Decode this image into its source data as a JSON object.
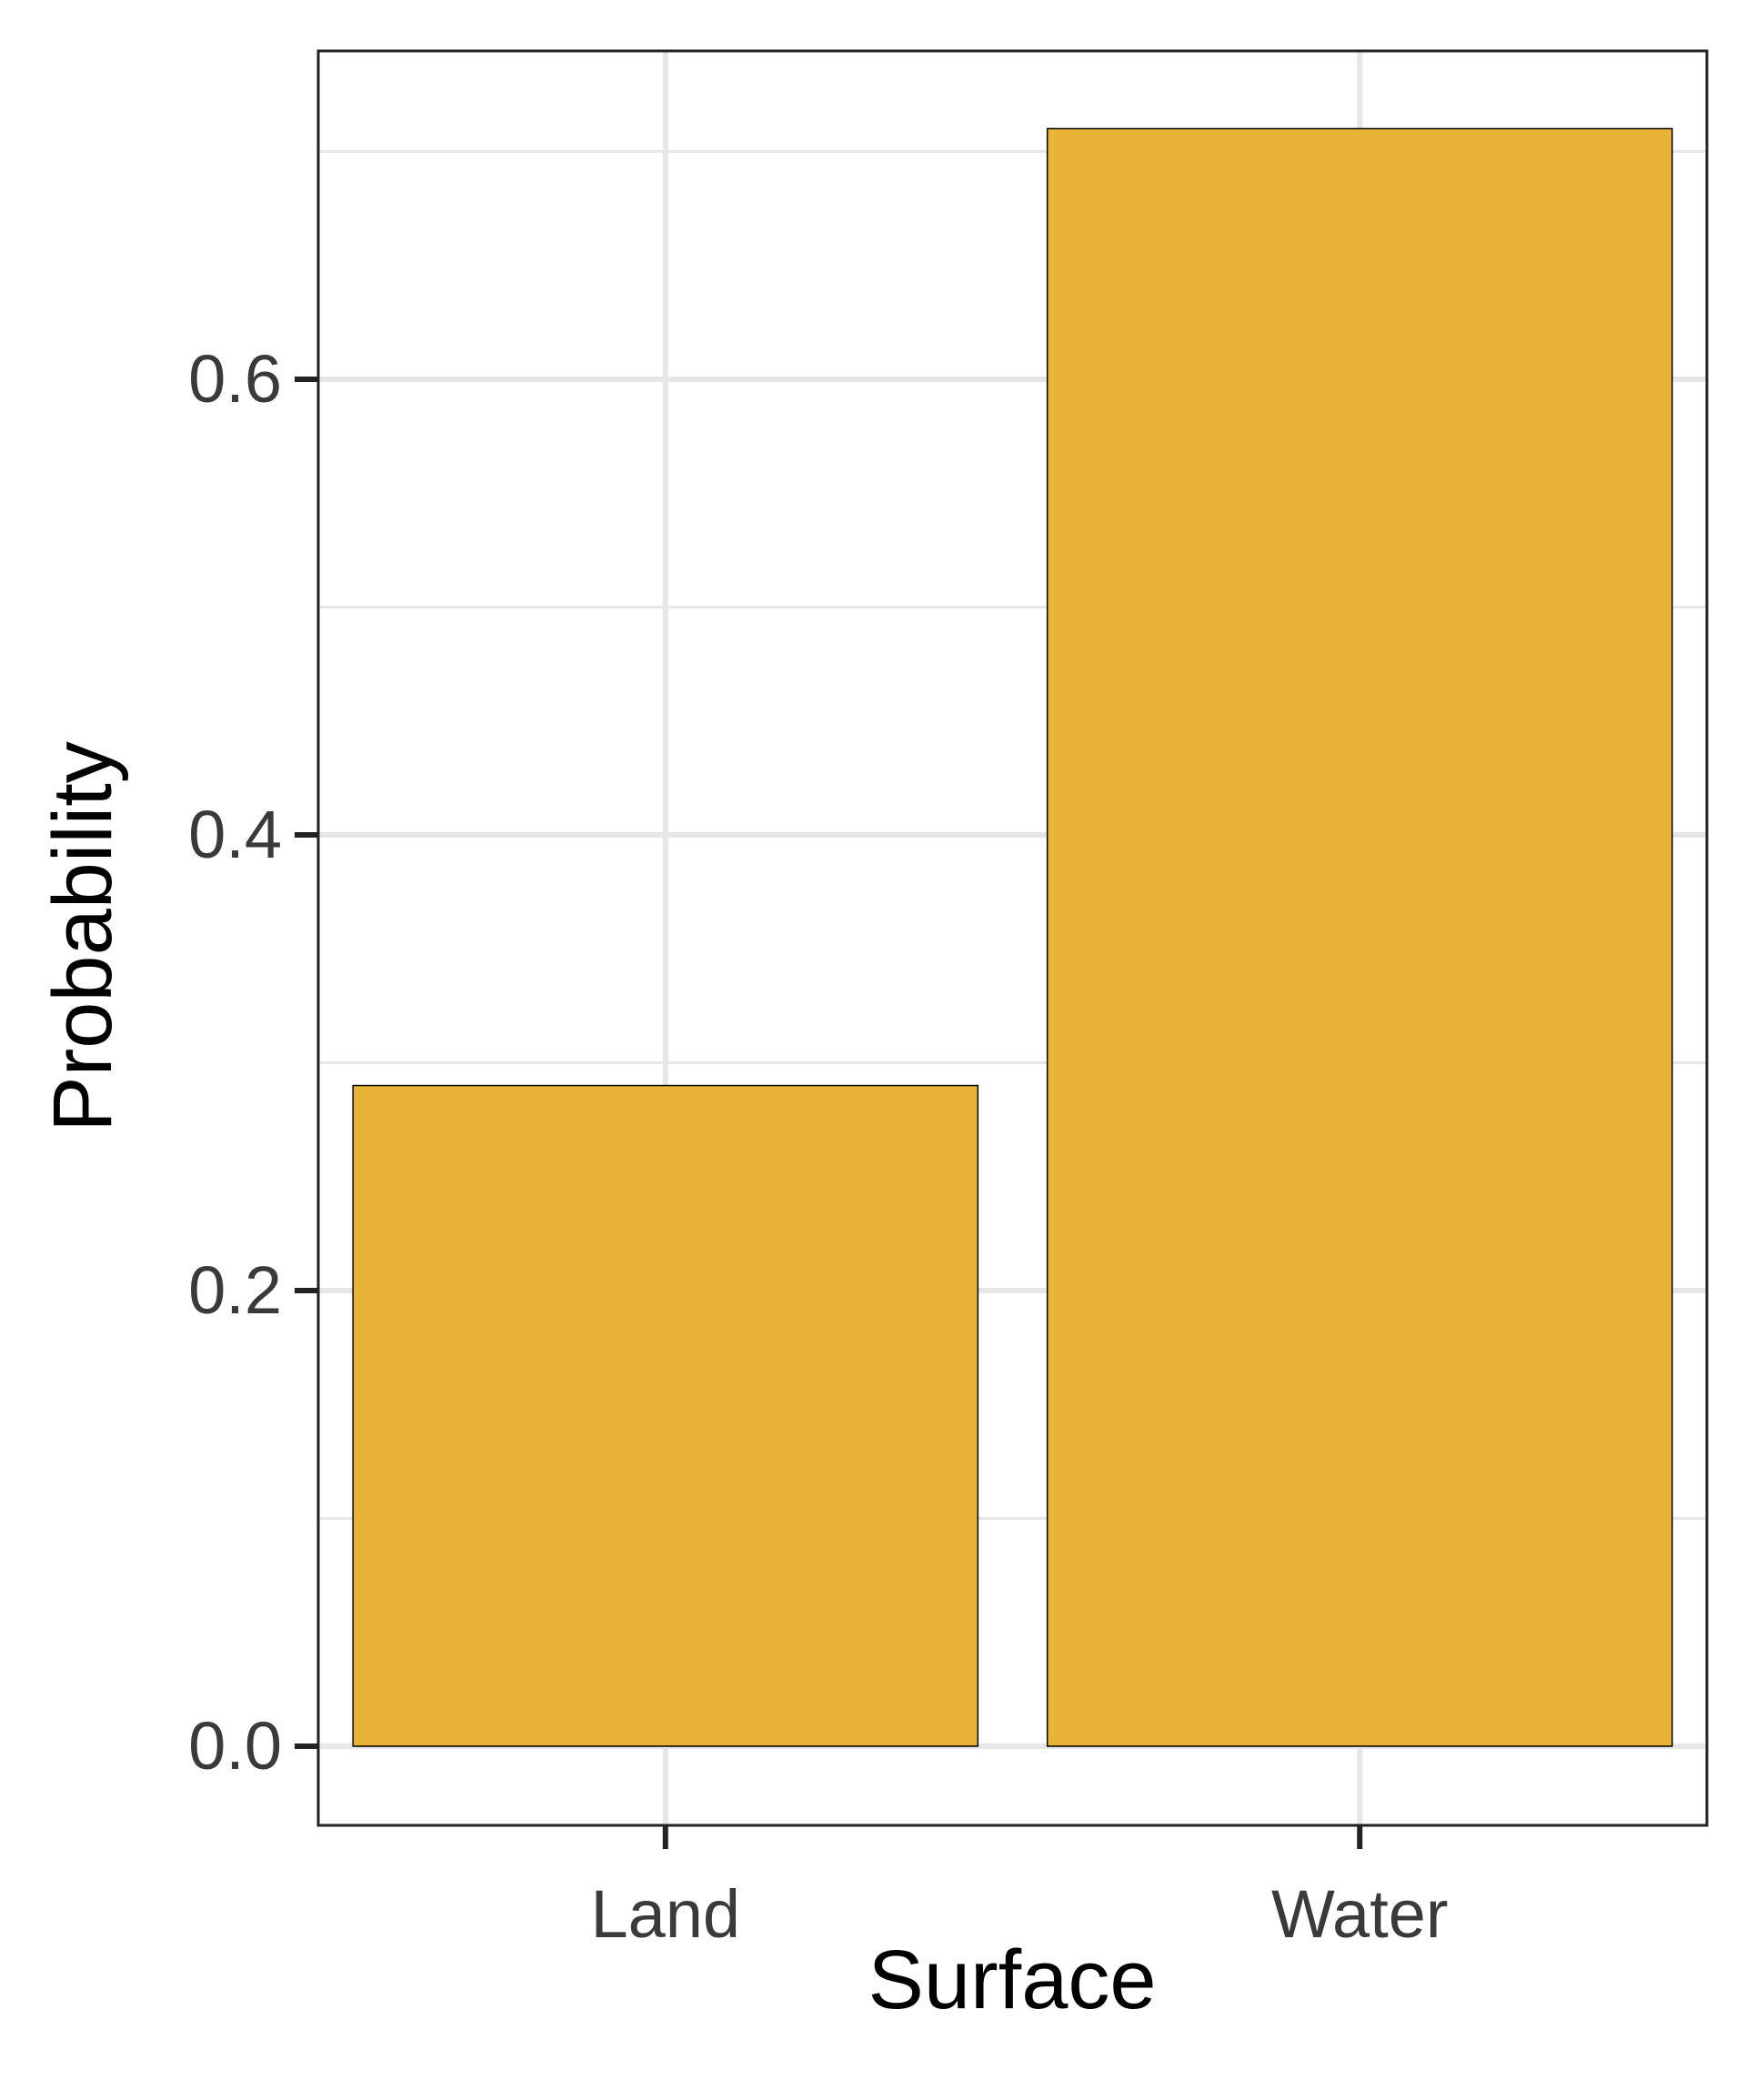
{
  "chart_data": {
    "type": "bar",
    "categories": [
      "Land",
      "Water"
    ],
    "values": [
      0.29,
      0.71
    ],
    "xlabel": "Surface",
    "ylabel": "Probability",
    "ylim": [
      -0.035,
      0.745
    ],
    "yticks": [
      0.0,
      0.2,
      0.4,
      0.6
    ],
    "ytick_labels": [
      "0.0",
      "0.2",
      "0.4",
      "0.6"
    ],
    "grid": true,
    "bar_fill": "#E8B336",
    "bar_stroke": "#000000",
    "grid_color": "#E6E6E6",
    "axis_color": "#222222",
    "tick_label_color": "#3A3A3A",
    "title_color": "#000000"
  }
}
